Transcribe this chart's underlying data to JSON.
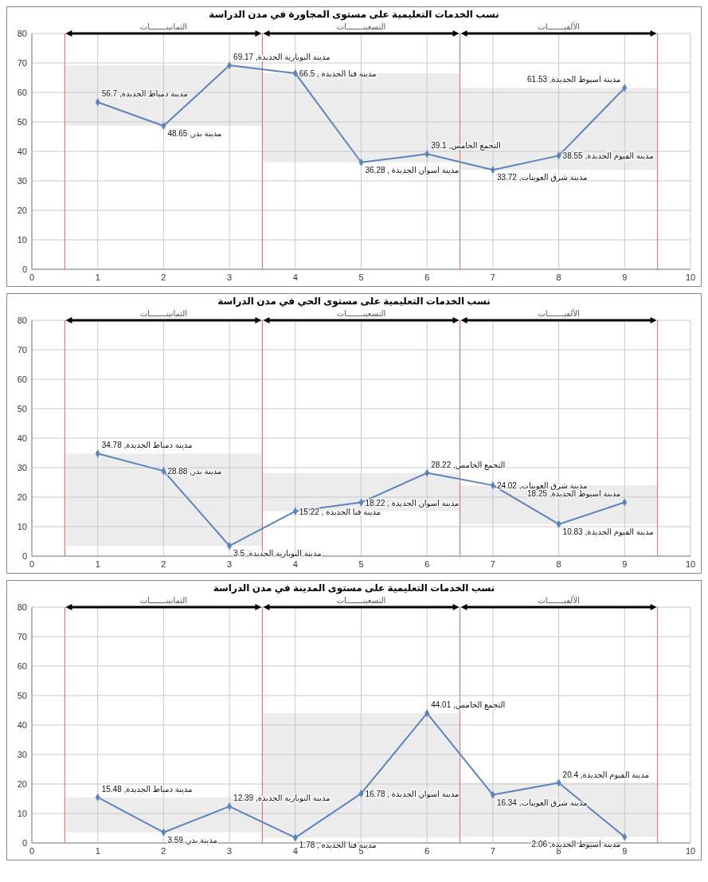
{
  "chart_data": [
    {
      "type": "line",
      "title": "نسب الخدمات التعليمية على مستوى المجاورة في مدن الدراسة",
      "x": [
        1,
        2,
        3,
        4,
        5,
        6,
        7,
        8,
        9
      ],
      "series": [
        {
          "color": "#5b84bd",
          "values": [
            56.7,
            48.65,
            69.17,
            66.5,
            36.28,
            39.1,
            33.72,
            38.55,
            61.53
          ],
          "value_labels": [
            "مدينة دمياط الجديدة, 56.7",
            "مدينة بدر, 48.65",
            "مدينة النوبارية الجديدة, 69.17",
            "مدينة قنا الجديدة , 66.5",
            "مدينة اسوان الجديدة , 36.28",
            "التجمع الخامس, 39.1",
            "مدينة شرق العوينات, 33.72",
            "مدينة الفيوم الجديدة, 38.55",
            "مدينة اسيوط الجديدة, 61.53"
          ]
        }
      ],
      "xlim": [
        0,
        10
      ],
      "xticks": [
        0,
        1,
        2,
        3,
        4,
        5,
        6,
        7,
        8,
        9,
        10
      ],
      "ylim": [
        0,
        80
      ],
      "yticks": [
        0,
        10,
        20,
        30,
        40,
        50,
        60,
        70,
        80
      ],
      "ref_lines": [
        {
          "axis": "x",
          "value": 0.5,
          "color": "#e06666"
        },
        {
          "axis": "x",
          "value": 3.5,
          "color": "#e06666"
        },
        {
          "axis": "x",
          "value": 6.5,
          "color": "#e06666"
        },
        {
          "axis": "x",
          "value": 9.5,
          "color": "#e06666"
        }
      ],
      "annotations": [
        "الثمانينـــــــات",
        "التسعينـــــــات",
        "الألفيـــــــات"
      ],
      "grid": true,
      "marker": "diamond",
      "line_style": "solid"
    },
    {
      "type": "line",
      "title": "نسب الخدمات التعليمية على مستوى الحي في مدن الدراسة",
      "x": [
        1,
        2,
        3,
        4,
        5,
        6,
        7,
        8,
        9
      ],
      "series": [
        {
          "color": "#5b84bd",
          "values": [
            34.78,
            28.88,
            3.5,
            15.22,
            18.22,
            28.22,
            24.02,
            10.83,
            18.25
          ],
          "value_labels": [
            "مدينة دمياط الجديدة, 34.78",
            "مدينة بدر, 28.88",
            "مدينة النوبارية الجديدة, 3.5",
            "مدينة قنا الجديدة , 15.22",
            "مدينة اسوان الجديدة , 18.22",
            "التجمع الخامس, 28.22",
            "مدينة شرق العوينات, 24.02",
            "مدينة الفيوم الجديدة, 10.83",
            "مدينة اسيوط الجديدة, 18.25"
          ]
        }
      ],
      "xlim": [
        0,
        10
      ],
      "xticks": [
        0,
        1,
        2,
        3,
        4,
        5,
        6,
        7,
        8,
        9,
        10
      ],
      "ylim": [
        0,
        80
      ],
      "yticks": [
        0,
        10,
        20,
        30,
        40,
        50,
        60,
        70,
        80
      ],
      "ref_lines": [
        {
          "axis": "x",
          "value": 0.5,
          "color": "#e06666"
        },
        {
          "axis": "x",
          "value": 3.5,
          "color": "#e06666"
        },
        {
          "axis": "x",
          "value": 6.5,
          "color": "#e06666"
        },
        {
          "axis": "x",
          "value": 9.5,
          "color": "#e06666"
        }
      ],
      "annotations": [
        "الثمانينـــــــات",
        "التسعينـــــــات",
        "الألفيـــــــات"
      ],
      "grid": true,
      "marker": "diamond",
      "line_style": "solid"
    },
    {
      "type": "line",
      "title": "نسب الخدمات التعليمية على مستوى المدينة في مدن الدراسة",
      "x": [
        1,
        2,
        3,
        4,
        5,
        6,
        7,
        8,
        9
      ],
      "series": [
        {
          "color": "#5b84bd",
          "values": [
            15.48,
            3.59,
            12.39,
            1.78,
            16.78,
            44.01,
            16.34,
            20.4,
            2.06
          ],
          "value_labels": [
            "مدينة دمياط الجديدة, 15.48",
            "مدينة بدر, 3.59",
            "مدينة النوبارية الجديدة, 12.39",
            "مدينة قنا الجديدة , 1.78",
            "مدينة اسوان الجديدة , 16.78",
            "التجمع الخامس, 44.01",
            "مدينة شرق العوينات, 16.34",
            "مدينة الفيوم الجديدة, 20.4",
            "مدينة اسيوط الجديدة, 2.06"
          ]
        }
      ],
      "xlim": [
        0,
        10
      ],
      "xticks": [
        0,
        1,
        2,
        3,
        4,
        5,
        6,
        7,
        8,
        9,
        10
      ],
      "ylim": [
        0,
        80
      ],
      "yticks": [
        0,
        10,
        20,
        30,
        40,
        50,
        60,
        70,
        80
      ],
      "ref_lines": [
        {
          "axis": "x",
          "value": 0.5,
          "color": "#e06666"
        },
        {
          "axis": "x",
          "value": 3.5,
          "color": "#e06666"
        },
        {
          "axis": "x",
          "value": 6.5,
          "color": "#e06666"
        },
        {
          "axis": "x",
          "value": 9.5,
          "color": "#e06666"
        }
      ],
      "annotations": [
        "الثمانينـــــــات",
        "التسعينـــــــات",
        "الألفيـــــــات"
      ],
      "grid": true,
      "marker": "diamond",
      "line_style": "solid"
    }
  ]
}
